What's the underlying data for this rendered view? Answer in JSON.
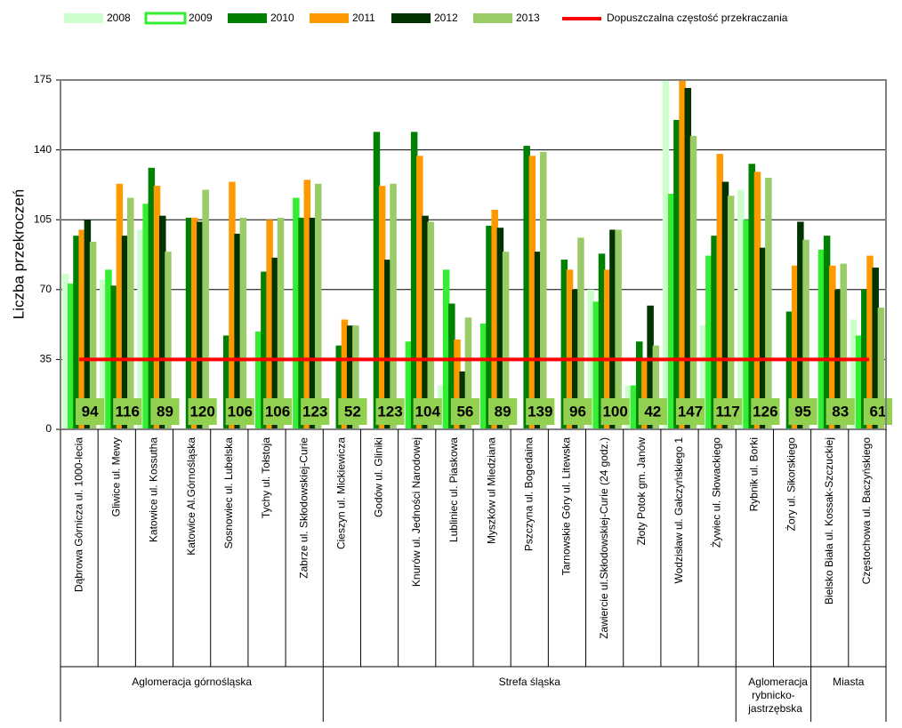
{
  "chart_data": {
    "type": "bar",
    "y_label": "Liczba przekroczeń",
    "categories": [
      "Dąbrowa Górnicza ul. 1000-lecia",
      "Gliwice ul. Mewy",
      "Katowice ul. Kossutha",
      "Katowice Al.Górnośląska",
      "Sosnowiec ul. Lubelska",
      "Tychy ul. Tołstoja",
      "Zabrze ul. Skłodowskiej-Curie",
      "Cieszyn ul. Mickiewicza",
      "Godów ul. Gliniki",
      "Knurów ul. Jedności Narodowej",
      "Lubliniec ul. Piaskowa",
      "Myszków ul Miedziana",
      "Pszczyna ul. Bogedaina",
      "Tarnowskie Góry ul. Litewska",
      "Zawiercie ul.Skłodowskiej-Curie (24 godz.)",
      "Złoty Potok gm. Janów",
      "Wodzisław ul. Gałczyńskiego 1",
      "Żywiec ul. Słowackiego",
      "Rybnik ul. Borki",
      "Żory ul. Sikorskiego",
      "Bielsko Biała ul. Kossak-Szczuckiej",
      "Częstochowa ul. Baczyńskiego"
    ],
    "groups": [
      {
        "label": "Aglomeracja górnośląska",
        "count": 7
      },
      {
        "label": "Strefa śląska",
        "count": 11
      },
      {
        "label": "Aglomeracja rybnicko-jastrzębska",
        "count": 2
      },
      {
        "label": "Miasta",
        "count": 2
      }
    ],
    "series": [
      {
        "name": "2008",
        "color": "#ccffcc",
        "values": [
          78,
          75,
          100,
          null,
          null,
          null,
          null,
          null,
          null,
          null,
          22,
          null,
          null,
          null,
          70,
          22,
          175,
          52,
          120,
          null,
          null,
          55
        ]
      },
      {
        "name": "2009",
        "color": "#33ee33",
        "values": [
          73,
          80,
          113,
          null,
          null,
          49,
          116,
          null,
          null,
          44,
          80,
          53,
          null,
          null,
          64,
          22,
          118,
          87,
          105,
          null,
          90,
          47
        ]
      },
      {
        "name": "2010",
        "color": "#008000",
        "values": [
          97,
          72,
          131,
          106,
          47,
          79,
          106,
          42,
          149,
          149,
          63,
          102,
          142,
          85,
          88,
          44,
          155,
          97,
          133,
          59,
          97,
          70
        ]
      },
      {
        "name": "2011",
        "color": "#ff9900",
        "values": [
          100,
          123,
          122,
          106,
          124,
          105,
          125,
          55,
          122,
          137,
          45,
          110,
          137,
          80,
          80,
          35,
          175,
          138,
          129,
          82,
          82,
          87
        ]
      },
      {
        "name": "2012",
        "color": "#003300",
        "values": [
          105,
          97,
          107,
          104,
          98,
          86,
          106,
          52,
          85,
          107,
          29,
          101,
          89,
          70,
          100,
          62,
          171,
          124,
          91,
          104,
          70,
          81
        ]
      },
      {
        "name": "2013",
        "color": "#99cc66",
        "values": [
          94,
          116,
          89,
          120,
          106,
          106,
          123,
          52,
          123,
          104,
          56,
          89,
          139,
          96,
          100,
          42,
          147,
          117,
          126,
          95,
          83,
          61
        ]
      }
    ],
    "threshold": {
      "name": "Dopuszczalna częstość przekraczania",
      "value": 35,
      "color": "#ff0000"
    },
    "ylim": [
      0,
      175
    ],
    "yticks": [
      0,
      35,
      70,
      105,
      140,
      175
    ],
    "grid": true
  }
}
